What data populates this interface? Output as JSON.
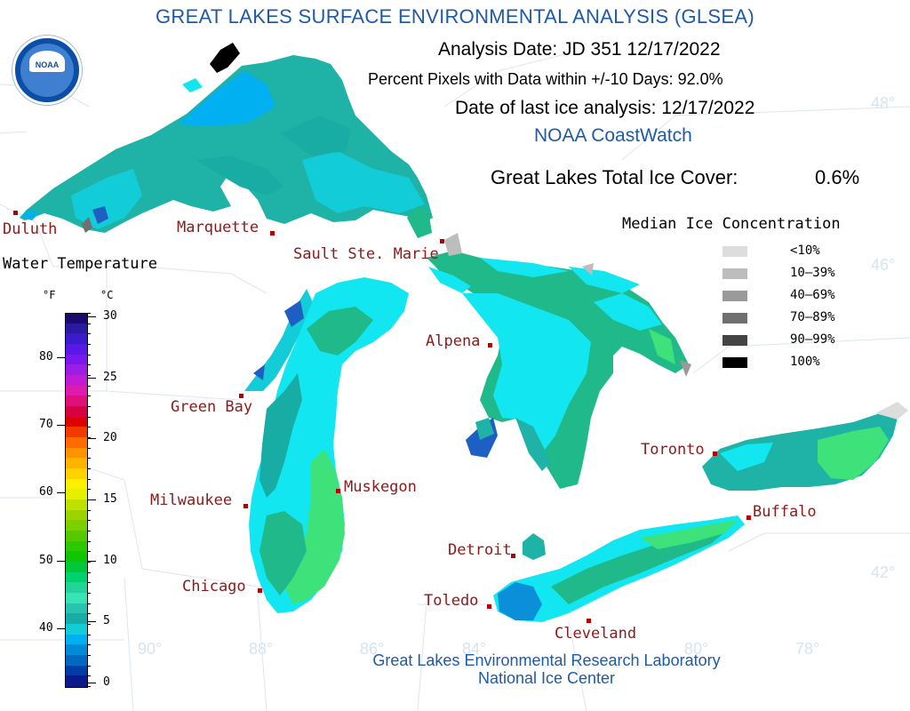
{
  "title": "GREAT LAKES SURFACE ENVIRONMENTAL ANALYSIS (GLSEA)",
  "header": {
    "analysis_date": "Analysis Date:  JD 351 12/17/2022",
    "percent_pixels": "Percent Pixels with Data within +/-10 Days:  92.0%",
    "ice_analysis_date": "Date of last ice analysis: 12/17/2022",
    "source": "NOAA CoastWatch",
    "total_ice_label": "Great Lakes Total Ice Cover:",
    "total_ice_value": "0.6%"
  },
  "logo": {
    "text": "NOAA"
  },
  "temperature_legend": {
    "title": "Water Temperature",
    "unit_f": "°F",
    "unit_c": "°C",
    "f_ticks": [
      "80",
      "70",
      "60",
      "50",
      "40"
    ],
    "c_ticks": [
      "30",
      "25",
      "20",
      "15",
      "10",
      "5",
      "0"
    ],
    "colors": [
      "#1b0b6e",
      "#2a1aa3",
      "#3a1ccd",
      "#5a18e6",
      "#7a16ee",
      "#9a1ee6",
      "#c01cd6",
      "#e01aae",
      "#e0107a",
      "#d80040",
      "#e00000",
      "#f23a00",
      "#ff6a00",
      "#ff9200",
      "#ffb400",
      "#ffd200",
      "#fff000",
      "#e4f000",
      "#c0e000",
      "#9cd400",
      "#7cd000",
      "#54c800",
      "#2ec800",
      "#10c400",
      "#00c83a",
      "#00d26e",
      "#22d39a",
      "#38e4b6",
      "#28c4b0",
      "#18ada4",
      "#12ccd8",
      "#00b0f0",
      "#008ad8",
      "#0068c0",
      "#003ca8",
      "#0a1a8a"
    ]
  },
  "ice_legend": {
    "title": "Median Ice Concentration",
    "items": [
      {
        "label": "<10%",
        "color": "#dddddd"
      },
      {
        "label": "10–39%",
        "color": "#bdbdbd"
      },
      {
        "label": "40–69%",
        "color": "#9a9a9a"
      },
      {
        "label": "70–89%",
        "color": "#707070"
      },
      {
        "label": "90–99%",
        "color": "#444444"
      },
      {
        "label": "100%",
        "color": "#000000"
      }
    ]
  },
  "cities": {
    "duluth": "Duluth",
    "marquette": "Marquette",
    "sault": "Sault Ste. Marie",
    "alpena": "Alpena",
    "green_bay": "Green Bay",
    "milwaukee": "Milwaukee",
    "muskegon": "Muskegon",
    "chicago": "Chicago",
    "detroit": "Detroit",
    "toledo": "Toledo",
    "cleveland": "Cleveland",
    "toronto": "Toronto",
    "buffalo": "Buffalo"
  },
  "graticule": {
    "lat_48": "48°",
    "lat_46": "46°",
    "lat_42": "42°",
    "lon_90": "90°",
    "lon_88": "88°",
    "lon_86": "86°",
    "lon_84": "84°",
    "lon_80": "80°",
    "lon_78": "78°"
  },
  "footer": {
    "line1": "Great Lakes Environmental Research Laboratory",
    "line2": "National Ice Center"
  },
  "map_colors": {
    "very_cold": "#0a8fd8",
    "cold": "#00b8e8",
    "cyan": "#12e6f0",
    "teal": "#1fb3a8",
    "green": "#1fb98a",
    "bright_green": "#3de27a",
    "deep_blue": "#1e5fc4"
  }
}
